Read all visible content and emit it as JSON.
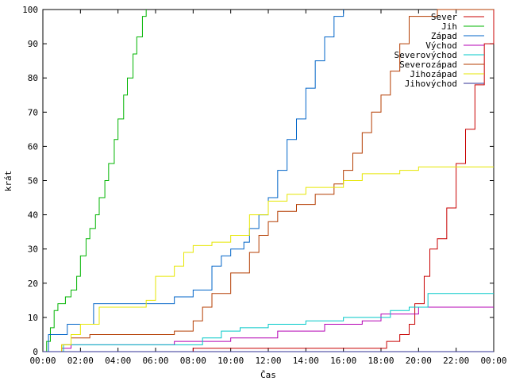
{
  "chart_data": {
    "type": "line",
    "xlabel": "Čas",
    "ylabel": "krát",
    "xlim": [
      0,
      24
    ],
    "ylim": [
      0,
      100
    ],
    "grid": false,
    "legend_placement": "top-right",
    "xticks": [
      {
        "v": 0,
        "label": "00:00"
      },
      {
        "v": 2,
        "label": "02:00"
      },
      {
        "v": 4,
        "label": "04:00"
      },
      {
        "v": 6,
        "label": "06:00"
      },
      {
        "v": 8,
        "label": "08:00"
      },
      {
        "v": 10,
        "label": "10:00"
      },
      {
        "v": 12,
        "label": "12:00"
      },
      {
        "v": 14,
        "label": "14:00"
      },
      {
        "v": 16,
        "label": "16:00"
      },
      {
        "v": 18,
        "label": "18:00"
      },
      {
        "v": 20,
        "label": "20:00"
      },
      {
        "v": 22,
        "label": "22:00"
      },
      {
        "v": 24,
        "label": "00:00"
      }
    ],
    "yticks": [
      {
        "v": 0,
        "label": "0"
      },
      {
        "v": 10,
        "label": "10"
      },
      {
        "v": 20,
        "label": "20"
      },
      {
        "v": 30,
        "label": "30"
      },
      {
        "v": 40,
        "label": "40"
      },
      {
        "v": 50,
        "label": "50"
      },
      {
        "v": 60,
        "label": "60"
      },
      {
        "v": 70,
        "label": "70"
      },
      {
        "v": 80,
        "label": "80"
      },
      {
        "v": 90,
        "label": "90"
      },
      {
        "v": 100,
        "label": "100"
      }
    ],
    "series": [
      {
        "name": "Sever",
        "color": "#c80000",
        "x": [
          7.8,
          8.0,
          12.0,
          18.3,
          19.0,
          19.5,
          19.8,
          20.3,
          20.6,
          21.0,
          21.5,
          22.0,
          22.5,
          23.0,
          23.5,
          24.0
        ],
        "y": [
          0,
          1,
          1,
          3,
          5,
          8,
          14,
          22,
          30,
          33,
          42,
          55,
          65,
          78,
          90,
          100
        ]
      },
      {
        "name": "Jih",
        "color": "#00b400",
        "x": [
          0.0,
          0.2,
          0.4,
          0.6,
          0.8,
          1.0,
          1.2,
          1.5,
          1.8,
          2.0,
          2.3,
          2.5,
          2.8,
          3.0,
          3.3,
          3.5,
          3.8,
          4.0,
          4.3,
          4.5,
          4.8,
          5.0,
          5.3,
          5.5
        ],
        "y": [
          0,
          3,
          7,
          12,
          14,
          14,
          16,
          18,
          22,
          28,
          33,
          36,
          40,
          45,
          50,
          55,
          62,
          68,
          75,
          80,
          87,
          92,
          98,
          100
        ]
      },
      {
        "name": "Západ",
        "color": "#0064c8",
        "x": [
          0.1,
          0.3,
          1.0,
          1.3,
          2.3,
          2.7,
          3.0,
          6.0,
          7.0,
          8.0,
          9.0,
          9.5,
          10.0,
          10.7,
          11.0,
          11.5,
          12.0,
          12.5,
          13.0,
          13.5,
          14.0,
          14.5,
          15.0,
          15.5,
          16.0
        ],
        "y": [
          0,
          5,
          5,
          8,
          8,
          14,
          14,
          14,
          16,
          18,
          25,
          28,
          30,
          32,
          36,
          40,
          45,
          53,
          62,
          68,
          77,
          85,
          92,
          98,
          100
        ]
      },
      {
        "name": "Východ",
        "color": "#b400b4",
        "x": [
          0.3,
          1.0,
          1.5,
          4.0,
          7.0,
          10.0,
          12.5,
          15.0,
          17.0,
          18.0,
          20.0,
          21.0,
          23.0,
          24.0
        ],
        "y": [
          0,
          1,
          2,
          2,
          3,
          4,
          6,
          8,
          9,
          11,
          13,
          13,
          13,
          13
        ]
      },
      {
        "name": "Severovýchod",
        "color": "#00c8c8",
        "x": [
          1.0,
          1.1,
          3.0,
          7.5,
          8.5,
          9.5,
          10.5,
          12.0,
          14.0,
          16.0,
          18.5,
          19.5,
          20.5,
          22.0,
          24.0
        ],
        "y": [
          0,
          2,
          2,
          2,
          4,
          6,
          7,
          8,
          9,
          10,
          12,
          13,
          17,
          17,
          17
        ]
      },
      {
        "name": "Severozápad",
        "color": "#b43c00",
        "x": [
          0.5,
          1.0,
          1.5,
          2.5,
          5.0,
          7.0,
          8.0,
          8.5,
          9.0,
          10.0,
          11.0,
          11.5,
          12.0,
          12.5,
          13.5,
          14.5,
          15.5,
          16.0,
          16.5,
          17.0,
          17.5,
          18.0,
          18.5,
          19.0,
          19.5,
          20.5,
          21.0,
          24.0
        ],
        "y": [
          0,
          2,
          4,
          5,
          5,
          6,
          9,
          13,
          17,
          23,
          29,
          34,
          38,
          41,
          43,
          46,
          49,
          53,
          58,
          64,
          70,
          75,
          82,
          90,
          98,
          98,
          100,
          100
        ]
      },
      {
        "name": "Jihozápad",
        "color": "#e6e600",
        "x": [
          0.8,
          1.0,
          1.5,
          2.0,
          3.0,
          5.5,
          6.0,
          7.0,
          7.5,
          8.0,
          9.0,
          10.0,
          11.0,
          12.0,
          13.0,
          14.0,
          15.0,
          16.0,
          17.0,
          19.0,
          20.0,
          22.0,
          24.0
        ],
        "y": [
          0,
          2,
          5,
          8,
          13,
          15,
          22,
          25,
          29,
          31,
          32,
          34,
          40,
          44,
          46,
          48,
          48,
          50,
          52,
          53,
          54,
          54,
          54
        ]
      },
      {
        "name": "Jihovýchod",
        "color": "#323296",
        "x": [
          0.0,
          24.0
        ],
        "y": [
          0,
          0
        ]
      }
    ]
  }
}
